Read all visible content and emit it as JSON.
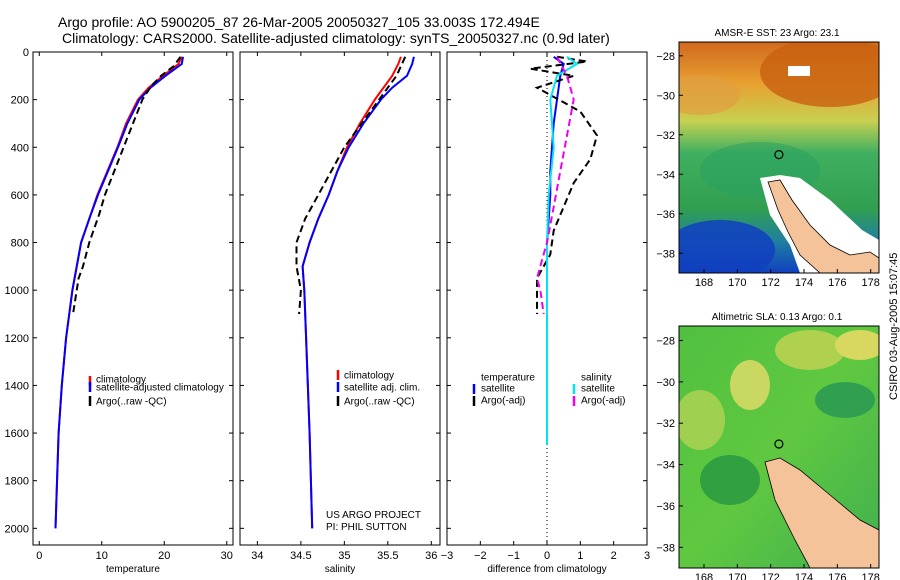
{
  "header": {
    "line1": "Argo profile: AO 5900205_87 26-Mar-2005 20050327_105 33.003S 172.494E",
    "line2": "Climatology: CARS2000. Satellite-adjusted climatology: synTS_20050327.nc (0.9d later)"
  },
  "credit": "CSIRO 03-Aug-2005 15:07:45",
  "colors": {
    "clim": "#ff0000",
    "sat": "#0000ff",
    "argo": "#000000",
    "cyan": "#00e5ee",
    "magenta": "#ee00ee"
  },
  "chart_data": [
    {
      "type": "line",
      "id": "temperature",
      "xlabel": "temperature",
      "xlim": [
        -1,
        31
      ],
      "ylim": [
        0,
        2070
      ],
      "xticks": [
        0,
        10,
        20,
        30
      ],
      "yticks": [
        0,
        200,
        400,
        600,
        800,
        1000,
        1200,
        1400,
        1600,
        1800,
        2000
      ],
      "series": [
        {
          "name": "climatology",
          "color": "#ff0000",
          "dash": "none",
          "x": [
            22.8,
            22.3,
            19.8,
            17.5,
            15.8,
            13.9,
            12.5,
            10.9,
            9.3,
            8.0,
            6.7,
            5.3,
            4.3,
            3.6,
            3.1,
            2.6
          ],
          "y": [
            20,
            50,
            100,
            150,
            200,
            300,
            400,
            500,
            600,
            700,
            800,
            1000,
            1200,
            1400,
            1600,
            2000
          ]
        },
        {
          "name": "satellite-adjusted climatology",
          "color": "#0000ff",
          "dash": "none",
          "x": [
            23.0,
            22.8,
            20.2,
            17.8,
            16.0,
            14.1,
            12.6,
            11.0,
            9.4,
            8.0,
            6.7,
            5.3,
            4.3,
            3.6,
            3.1,
            2.6
          ],
          "y": [
            20,
            50,
            100,
            150,
            200,
            300,
            400,
            500,
            600,
            700,
            800,
            1000,
            1200,
            1400,
            1600,
            2000
          ]
        },
        {
          "name": "Argo(..raw -QC)",
          "color": "#000000",
          "dash": "7,4",
          "x": [
            22.6,
            21.5,
            19.5,
            18.0,
            16.5,
            15.0,
            13.5,
            12.0,
            10.5,
            9.6,
            8.0,
            7.0,
            6.3,
            5.4
          ],
          "y": [
            20,
            60,
            100,
            140,
            200,
            300,
            400,
            500,
            600,
            680,
            800,
            900,
            950,
            1100
          ]
        }
      ],
      "legend": [
        "climatology",
        "satellite-adjusted climatology",
        "Argo(..raw -QC)"
      ]
    },
    {
      "type": "line",
      "id": "salinity",
      "xlabel": "salinity",
      "xlim": [
        33.8,
        36.1
      ],
      "ylim": [
        0,
        2070
      ],
      "xticks": [
        34,
        34.5,
        35,
        35.5,
        36
      ],
      "xticklabels": [
        "34",
        "34.5",
        "35",
        "35.5",
        "36"
      ],
      "series": [
        {
          "name": "climatology",
          "color": "#ff0000",
          "dash": "none",
          "x": [
            35.65,
            35.62,
            35.55,
            35.45,
            35.35,
            35.18,
            35.03,
            34.92,
            34.82,
            34.7,
            34.6,
            34.52,
            34.54,
            34.56,
            34.6,
            34.63
          ],
          "y": [
            20,
            50,
            100,
            150,
            200,
            300,
            400,
            500,
            600,
            700,
            800,
            900,
            1000,
            1200,
            1600,
            2000
          ]
        },
        {
          "name": "satellite adj. clim.",
          "color": "#0000ff",
          "dash": "none",
          "x": [
            35.8,
            35.78,
            35.72,
            35.55,
            35.42,
            35.22,
            35.05,
            34.92,
            34.82,
            34.7,
            34.6,
            34.52,
            34.54,
            34.56,
            34.6,
            34.63
          ],
          "y": [
            20,
            50,
            100,
            150,
            200,
            300,
            400,
            500,
            600,
            700,
            800,
            900,
            1000,
            1200,
            1600,
            2000
          ]
        },
        {
          "name": "Argo(..raw -QC)",
          "color": "#000000",
          "dash": "7,4",
          "x": [
            35.7,
            35.65,
            35.6,
            35.5,
            35.4,
            35.2,
            35.0,
            34.85,
            34.7,
            34.55,
            34.45,
            34.45,
            34.5,
            34.48
          ],
          "y": [
            20,
            60,
            100,
            150,
            200,
            300,
            400,
            500,
            600,
            700,
            800,
            900,
            1000,
            1100
          ]
        }
      ],
      "legend": [
        "climatology",
        "satellite adj. clim.",
        "Argo(..raw -QC)"
      ],
      "annotation": [
        "US ARGO PROJECT",
        "PI: PHIL SUTTON"
      ]
    },
    {
      "type": "line",
      "id": "difference",
      "xlabel": "difference from climatology",
      "xlim": [
        -3,
        3
      ],
      "ylim": [
        0,
        2070
      ],
      "xticks": [
        -3,
        -2,
        -1,
        0,
        1,
        2,
        3
      ],
      "xticklabels": [
        "−3",
        "−2",
        "−1",
        "0",
        "1",
        "2",
        "3"
      ],
      "series": [
        {
          "name": "temperature satellite",
          "color": "#0000ff",
          "dash": "none",
          "x": [
            0.2,
            0.5,
            0.4,
            0.3,
            0.2,
            0.15,
            0.1,
            0.1,
            0.05,
            0.0,
            0.0,
            0.0,
            0.0,
            0.0
          ],
          "y": [
            20,
            50,
            100,
            200,
            300,
            400,
            500,
            600,
            700,
            800,
            1000,
            1200,
            1400,
            1650
          ]
        },
        {
          "name": "temperature Argo(-adj)",
          "color": "#000000",
          "dash": "7,4",
          "x": [
            0.3,
            1.2,
            -0.5,
            0.8,
            -0.3,
            1.0,
            1.5,
            1.3,
            0.8,
            0.5,
            0.2,
            0.1,
            -0.3,
            -0.3
          ],
          "y": [
            20,
            40,
            70,
            100,
            150,
            250,
            350,
            450,
            550,
            650,
            750,
            850,
            950,
            1100
          ]
        },
        {
          "name": "salinity satellite",
          "color": "#00e5ee",
          "dash": "none",
          "x": [
            0.6,
            0.9,
            0.3,
            0.1,
            0.2,
            0.05,
            0.0,
            0.0,
            0.0,
            0.0,
            0.0
          ],
          "y": [
            20,
            50,
            100,
            200,
            400,
            600,
            800,
            1000,
            1200,
            1400,
            1650
          ]
        },
        {
          "name": "salinity Argo(-adj)",
          "color": "#ee00ee",
          "dash": "7,4",
          "x": [
            0.3,
            0.6,
            0.8,
            0.6,
            0.4,
            0.2,
            0.0,
            -0.2,
            -0.3,
            -0.2,
            -0.1
          ],
          "y": [
            20,
            100,
            200,
            350,
            500,
            650,
            800,
            900,
            950,
            1000,
            1100
          ]
        }
      ],
      "legend_left": {
        "heading": "temperature",
        "items": [
          "satellite",
          "Argo(-adj)"
        ]
      },
      "legend_right": {
        "heading": "salinity",
        "items": [
          "satellite",
          "Argo(-adj)"
        ]
      }
    },
    {
      "type": "heatmap",
      "id": "sst-map",
      "title": "AMSR-E SST: 23 Argo: 23.1",
      "xlim": [
        166.5,
        178.5
      ],
      "ylim": [
        -39,
        -27.3
      ],
      "xticks": [
        168,
        170,
        172,
        174,
        176,
        178
      ],
      "yticks": [
        -28,
        -30,
        -32,
        -34,
        -36,
        -38
      ],
      "yticklabels": [
        "−28",
        "−30",
        "−32",
        "−34",
        "−36",
        "−38"
      ],
      "argo_position": {
        "lon": 172.494,
        "lat": -33.003
      }
    },
    {
      "type": "heatmap",
      "id": "sla-map",
      "title": "Altimetric SLA: 0.13 Argo: 0.1",
      "xlim": [
        166.5,
        178.5
      ],
      "ylim": [
        -39,
        -27.3
      ],
      "xticks": [
        168,
        170,
        172,
        174,
        176,
        178
      ],
      "yticks": [
        -28,
        -30,
        -32,
        -34,
        -36,
        -38
      ],
      "yticklabels": [
        "−28",
        "−30",
        "−32",
        "−34",
        "−36",
        "−38"
      ],
      "argo_position": {
        "lon": 172.494,
        "lat": -33.003
      }
    }
  ]
}
